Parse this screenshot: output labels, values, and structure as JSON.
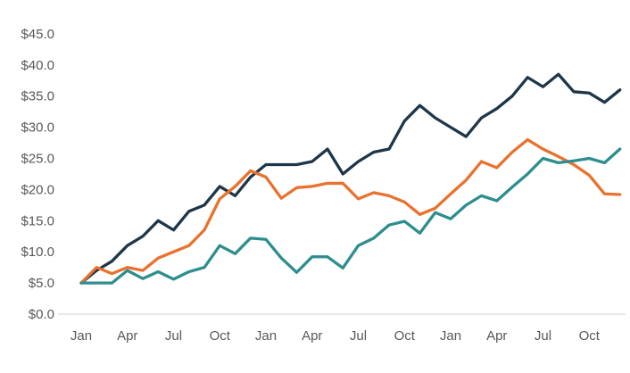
{
  "chart_data": {
    "type": "line",
    "title": "",
    "legend": "none",
    "gridlines": "none",
    "background": "#ffffff",
    "x_axis": {
      "tick_labels": [
        "Jan",
        "Apr",
        "Jul",
        "Oct",
        "Jan",
        "Apr",
        "Jul",
        "Oct",
        "Jan",
        "Apr",
        "Jul",
        "Oct"
      ],
      "ticks_every_n_months": 3,
      "points_per_series": 36,
      "axis_line_color": "#d9d9d9"
    },
    "y_axis": {
      "tick_labels": [
        "$45.0",
        "$40.0",
        "$35.0",
        "$30.0",
        "$25.0",
        "$20.0",
        "$15.0",
        "$10.0",
        "$5.0",
        "$0.0"
      ],
      "min": 0,
      "max": 45,
      "step": 5,
      "label_color": "#595959"
    },
    "series": [
      {
        "name": "navy-series",
        "color": "#1D3649",
        "values": [
          5,
          7,
          8.5,
          11,
          12.5,
          15,
          13.5,
          16.5,
          17.5,
          20.5,
          19,
          22,
          24,
          24,
          24,
          24.5,
          26.5,
          22.5,
          24.5,
          26,
          26.5,
          31,
          33.5,
          31.5,
          30,
          28.5,
          31.5,
          33,
          35,
          38,
          36.5,
          38.5,
          35.7,
          35.5,
          34,
          36
        ]
      },
      {
        "name": "orange-series",
        "color": "#E8722E",
        "values": [
          5,
          7.5,
          6.5,
          7.5,
          7,
          9,
          10,
          11,
          13.5,
          18.5,
          20.5,
          23,
          22,
          18.6,
          20.3,
          20.5,
          21,
          21,
          18.5,
          19.5,
          19,
          18,
          16,
          17,
          19.3,
          21.5,
          24.5,
          23.5,
          26,
          28,
          26.5,
          25.3,
          24,
          22.3,
          19.3,
          19.2
        ]
      },
      {
        "name": "teal-series",
        "color": "#2E8E8E",
        "values": [
          5,
          5,
          5,
          7,
          5.7,
          6.8,
          5.6,
          6.8,
          7.5,
          11,
          9.7,
          12.2,
          12,
          9,
          6.7,
          9.2,
          9.2,
          7.4,
          11,
          12.2,
          14.3,
          14.9,
          13,
          16.3,
          15.3,
          17.5,
          19,
          18.2,
          20.4,
          22.5,
          25,
          24.3,
          24.6,
          25,
          24.3,
          26.5
        ]
      }
    ]
  }
}
